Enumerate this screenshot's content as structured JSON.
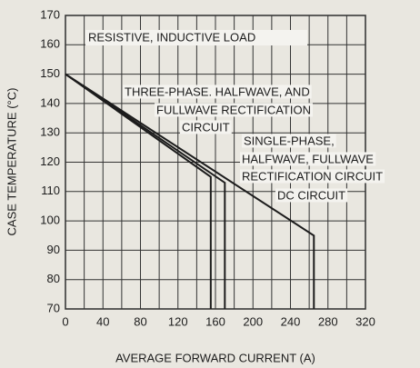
{
  "chart_data": {
    "type": "line",
    "title": "RESISTIVE, INDUCTIVE LOAD",
    "xlabel": "AVERAGE FORWARD CURRENT (A)",
    "ylabel": "CASE TEMPERATURE (°C)",
    "xlim": [
      0,
      320
    ],
    "xticks": [
      0,
      40,
      80,
      120,
      160,
      200,
      240,
      280,
      320
    ],
    "ylim": [
      70,
      170
    ],
    "yticks": [
      70,
      80,
      90,
      100,
      110,
      120,
      130,
      140,
      150,
      160,
      170
    ],
    "grid": true,
    "series": [
      {
        "label": [
          "THREE-PHASE. HALFWAVE, AND",
          "FULLWAVE RECTIFICATION",
          "CIRCUIT"
        ],
        "color": "#1c1c1c",
        "x": [
          0,
          155,
          155
        ],
        "values": [
          150,
          115,
          70
        ]
      },
      {
        "label": [
          "SINGLE-PHASE,",
          "HALFWAVE, FULLWAVE",
          "RECTIFICATION CIRCUIT"
        ],
        "color": "#1c1c1c",
        "x": [
          0,
          170,
          170
        ],
        "values": [
          150,
          113,
          70
        ]
      },
      {
        "label": [
          "DC CIRCUIT"
        ],
        "color": "#1c1c1c",
        "x": [
          0,
          265,
          265
        ],
        "values": [
          150,
          95,
          70
        ]
      }
    ]
  }
}
